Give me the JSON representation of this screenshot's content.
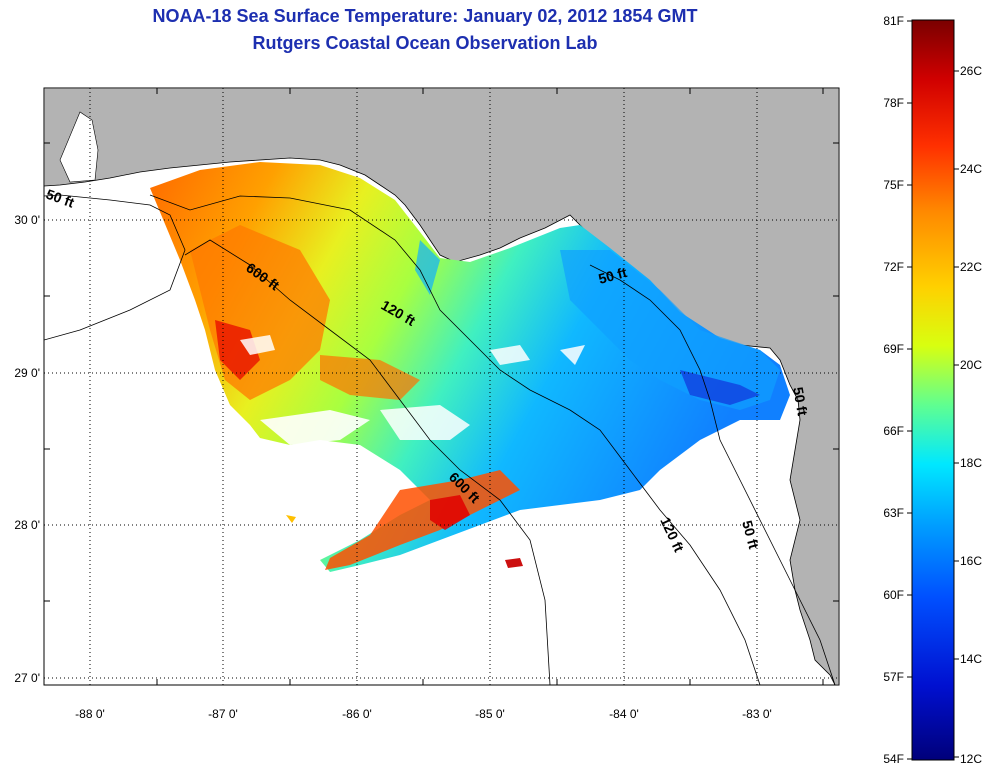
{
  "title": {
    "line1": "NOAA-18 Sea Surface Temperature:  January 02, 2012 1854 GMT",
    "line2": "Rutgers Coastal Ocean Observation Lab"
  },
  "lat_ticks": [
    "30 0'",
    "29 0'",
    "28 0'",
    "27 0'"
  ],
  "lon_ticks": [
    "-88 0'",
    "-87 0'",
    "-86 0'",
    "-85 0'",
    "-84 0'",
    "-83 0'"
  ],
  "contour_labels": [
    "50 ft",
    "600 ft",
    "120 ft",
    "50 ft",
    "600 ft",
    "120 ft",
    "50 ft",
    "50 ft"
  ],
  "colorbar": {
    "fahrenheit": [
      "81F",
      "78F",
      "75F",
      "72F",
      "69F",
      "66F",
      "63F",
      "60F",
      "57F",
      "54F"
    ],
    "celsius": [
      "26C",
      "24C",
      "22C",
      "20C",
      "18C",
      "16C",
      "14C",
      "12C"
    ],
    "colors": [
      "#7a0000",
      "#d00000",
      "#ff3000",
      "#ff8a00",
      "#ffd000",
      "#d8ff10",
      "#60ff90",
      "#00e8ff",
      "#00a0ff",
      "#0050ff",
      "#0010d0",
      "#00007a"
    ]
  },
  "colors": {
    "title": "#1d2fb0",
    "land": "#b3b3b3",
    "water": "#ffffff"
  }
}
